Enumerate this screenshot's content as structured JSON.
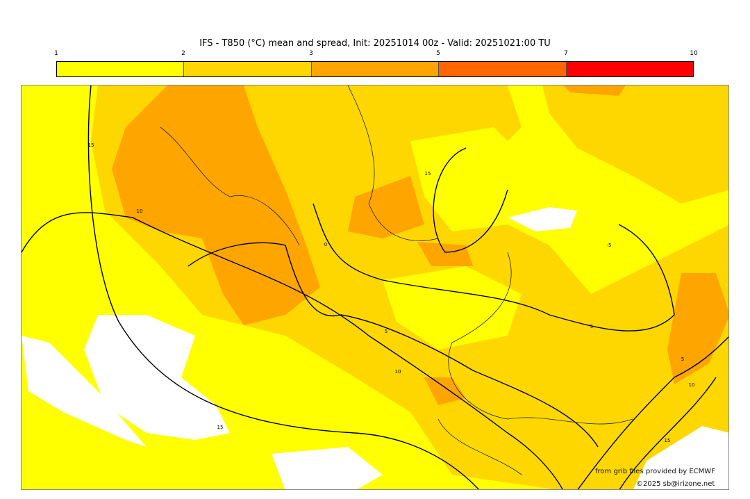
{
  "title": "IFS - T850 (°C) mean and spread, Init: 20251014 00z - Valid: 20251021:00 TU",
  "legend": {
    "ticks": [
      "1",
      "2",
      "3",
      "5",
      "7",
      "10"
    ],
    "colors": [
      "#ffff00",
      "#ffd700",
      "#ffa500",
      "#ff6600",
      "#ff0000"
    ]
  },
  "contour_labels": [
    "15",
    "10",
    "0",
    "5",
    "10",
    "15",
    "15",
    "5",
    "-5",
    "5",
    "10",
    "15"
  ],
  "credits": {
    "source": "from grib files provided by ECMWF",
    "copyright": "©2025 sb@irizone.net"
  }
}
